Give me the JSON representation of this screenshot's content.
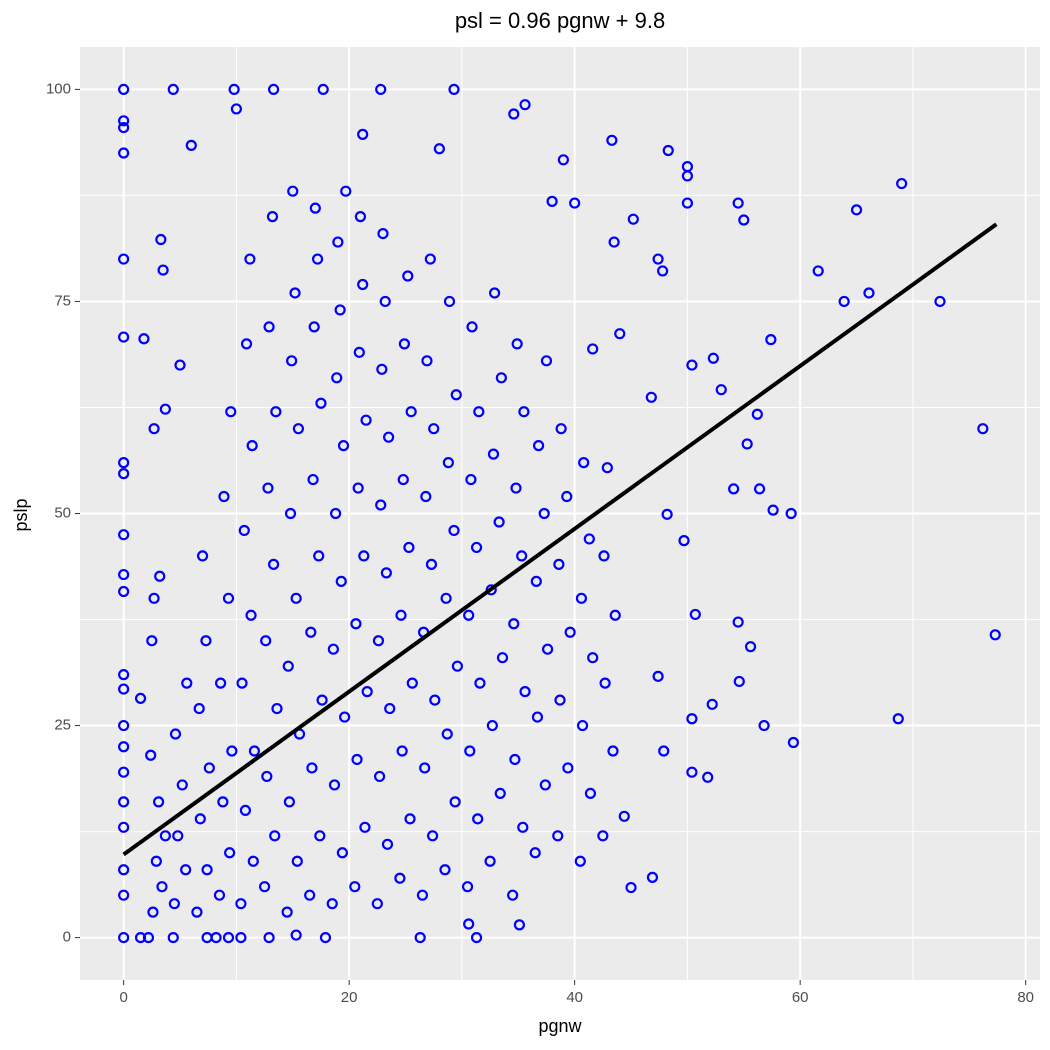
{
  "chart_data": {
    "type": "scatter",
    "title": "psl = 0.96 pgnw + 9.8",
    "x_label": "pgnw",
    "y_label": "pslp",
    "color": "#0000ff",
    "x": [
      0,
      0,
      0,
      0,
      0,
      0,
      0,
      0,
      0,
      0,
      0,
      0,
      0,
      0,
      0,
      0,
      0,
      0,
      0,
      0,
      0,
      4.4,
      9.8,
      13.3,
      17.7,
      22.8,
      29.3,
      35.6,
      34.6,
      43.3,
      48.3,
      50,
      50,
      69,
      65,
      50,
      54.5,
      55,
      61.6,
      63.9,
      66.1,
      72.4,
      57.4,
      52.3,
      53,
      50.4,
      56.2,
      55.3,
      54.1,
      56.4,
      57.6,
      59.2,
      76.2,
      77.3,
      68.7,
      59.4,
      56.8,
      50.4,
      52.2,
      55.6,
      54.5,
      54.6,
      51.8,
      50.4,
      45,
      46.9,
      31.3,
      26.3,
      35.1,
      30.6,
      1.5,
      4.4,
      7.4,
      8.2,
      9.3,
      10.4,
      12.9,
      15.3,
      17.9,
      2.2,
      44.4,
      47.9,
      47.4,
      50.7,
      49.7,
      48.2,
      42.9,
      46.8,
      44,
      41.6,
      47.4,
      43.5,
      45.2,
      47.8,
      39,
      40,
      38,
      28,
      21.2,
      3.5,
      6,
      10,
      3.3,
      1.8,
      3.7,
      5,
      2.7,
      3.2,
      2.7,
      2.5,
      1.5,
      2.4,
      2.6,
      3.4,
      2.9,
      3.7,
      3.1,
      4.5,
      5.5,
      4.8,
      5.2,
      4.6,
      5.6,
      6.5,
      7.4,
      6.8,
      7.6,
      6.7,
      7.3,
      7.0,
      8.5,
      9.4,
      8.8,
      9.6,
      8.6,
      9.3,
      8.9,
      9.5,
      10.4,
      11.5,
      10.8,
      11.6,
      10.5,
      11.3,
      10.7,
      11.4,
      10.9,
      11.2,
      12.5,
      13.4,
      12.7,
      13.6,
      12.6,
      13.3,
      12.8,
      13.5,
      12.9,
      13.2,
      14.5,
      15.4,
      14.7,
      15.6,
      14.6,
      15.3,
      14.8,
      15.5,
      14.9,
      15.2,
      15.0,
      16.5,
      17.4,
      16.7,
      17.6,
      16.6,
      17.3,
      16.8,
      17.5,
      16.9,
      17.2,
      17.0,
      18.5,
      19.4,
      18.7,
      19.6,
      18.6,
      19.3,
      18.8,
      19.5,
      18.9,
      19.2,
      19.0,
      19.7,
      20.5,
      21.4,
      20.7,
      21.6,
      20.6,
      21.3,
      20.8,
      21.5,
      20.9,
      21.2,
      21.0,
      22.5,
      23.4,
      22.7,
      23.6,
      22.6,
      23.3,
      22.8,
      23.5,
      22.9,
      23.2,
      23.0,
      24.5,
      25.4,
      24.7,
      25.6,
      24.6,
      25.3,
      24.8,
      25.5,
      24.9,
      25.2,
      26.5,
      27.4,
      26.7,
      27.6,
      26.6,
      27.3,
      26.8,
      27.5,
      26.9,
      27.2,
      28.5,
      29.4,
      28.7,
      29.6,
      28.6,
      29.3,
      28.8,
      29.5,
      28.9,
      30.5,
      31.4,
      30.7,
      31.6,
      30.6,
      31.3,
      30.8,
      31.5,
      30.9,
      32.5,
      33.4,
      32.7,
      33.6,
      32.6,
      33.3,
      32.8,
      33.5,
      32.9,
      34.5,
      35.4,
      34.7,
      35.6,
      34.6,
      35.3,
      34.8,
      35.5,
      34.9,
      36.5,
      37.4,
      36.7,
      37.6,
      36.6,
      37.3,
      36.8,
      37.5,
      38.5,
      39.4,
      38.7,
      39.6,
      38.6,
      39.3,
      38.8,
      40.5,
      41.4,
      40.7,
      41.6,
      40.6,
      41.3,
      40.8,
      42.5,
      43.4,
      42.7,
      43.6,
      42.6
    ],
    "values": [
      100,
      96.3,
      95.5,
      92.5,
      80,
      70.8,
      56,
      54.7,
      47.5,
      42.8,
      40.8,
      31,
      29.3,
      25,
      22.5,
      19.5,
      16,
      13,
      8,
      5,
      0,
      100,
      100,
      100,
      100,
      100,
      100,
      98.2,
      97.1,
      94,
      92.8,
      90.9,
      89.8,
      88.9,
      85.8,
      86.6,
      86.6,
      84.6,
      78.6,
      75,
      76,
      75,
      70.5,
      68.3,
      64.6,
      67.5,
      61.7,
      58.2,
      52.9,
      52.9,
      50.4,
      50,
      60,
      35.7,
      25.8,
      23,
      25,
      25.8,
      27.5,
      34.3,
      37.2,
      30.2,
      18.9,
      19.5,
      5.9,
      7.1,
      0,
      0,
      1.5,
      1.6,
      0,
      0,
      0,
      0,
      0,
      0,
      0,
      0.3,
      0,
      0,
      14.3,
      22,
      30.8,
      38.1,
      46.8,
      49.9,
      55.4,
      63.7,
      71.2,
      69.4,
      80,
      82,
      84.7,
      78.6,
      91.7,
      86.6,
      86.8,
      93,
      94.7,
      78.7,
      93.4,
      97.7,
      82.3,
      70.6,
      62.3,
      67.5,
      60,
      42.6,
      40,
      35,
      28.2,
      21.5,
      3,
      6,
      9,
      12,
      16,
      4,
      8,
      12,
      18,
      24,
      30,
      3,
      8,
      14,
      20,
      27,
      35,
      45,
      5,
      10,
      16,
      22,
      30,
      40,
      52,
      62,
      4,
      9,
      15,
      22,
      30,
      38,
      48,
      58,
      70,
      80,
      6,
      12,
      19,
      27,
      35,
      44,
      53,
      62,
      72,
      85,
      3,
      9,
      16,
      24,
      32,
      40,
      50,
      60,
      68,
      76,
      88,
      5,
      12,
      20,
      28,
      36,
      45,
      54,
      63,
      72,
      80,
      86,
      4,
      10,
      18,
      26,
      34,
      42,
      50,
      58,
      66,
      74,
      82,
      88,
      6,
      13,
      21,
      29,
      37,
      45,
      53,
      61,
      69,
      77,
      85,
      4,
      11,
      19,
      27,
      35,
      43,
      51,
      59,
      67,
      75,
      83,
      7,
      14,
      22,
      30,
      38,
      46,
      54,
      62,
      70,
      78,
      5,
      12,
      20,
      28,
      36,
      44,
      52,
      60,
      68,
      80,
      8,
      16,
      24,
      32,
      40,
      48,
      56,
      64,
      75,
      6,
      14,
      22,
      30,
      38,
      46,
      54,
      62,
      72,
      9,
      17,
      25,
      33,
      41,
      49,
      57,
      66,
      76,
      5,
      13,
      21,
      29,
      37,
      45,
      53,
      62,
      70,
      10,
      18,
      26,
      34,
      42,
      50,
      58,
      68,
      12,
      20,
      28,
      36,
      44,
      52,
      60,
      9,
      17,
      25,
      33,
      40,
      47,
      56,
      12,
      22,
      30,
      38,
      45
    ],
    "fit": {
      "x": [
        0,
        77.4
      ],
      "values": [
        9.8,
        84.1
      ],
      "color": "#000000"
    },
    "xlim": [
      -3.87,
      81.27
    ],
    "ylim": [
      -5,
      105
    ],
    "xticks": [
      0,
      20,
      40,
      60,
      80
    ],
    "yticks": [
      0,
      25,
      50,
      75,
      100
    ],
    "x_minor": [
      10,
      30,
      50,
      70
    ],
    "y_minor": [
      12.5,
      37.5,
      62.5,
      87.5
    ],
    "grid": true
  }
}
